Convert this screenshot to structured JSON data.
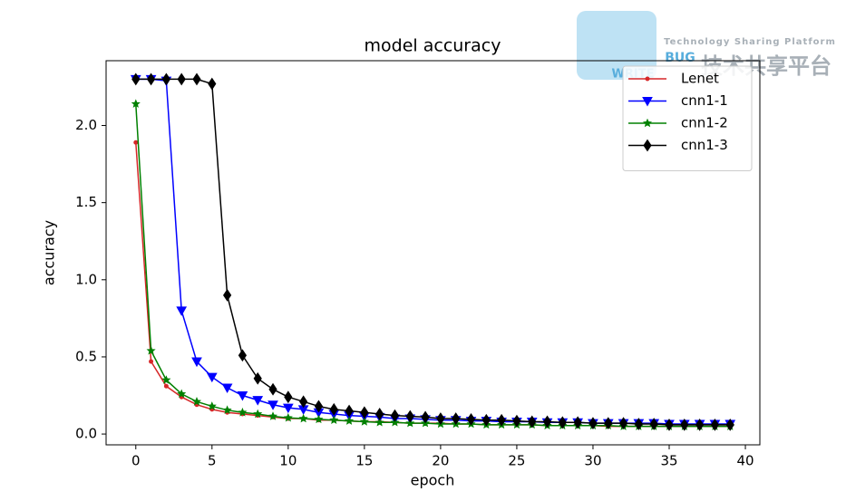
{
  "chart_data": {
    "type": "line",
    "title": "model accuracy",
    "x_label": "epoch",
    "y_label": "accuracy",
    "x": [
      0,
      1,
      2,
      3,
      4,
      5,
      6,
      7,
      8,
      9,
      10,
      11,
      12,
      13,
      14,
      15,
      16,
      17,
      18,
      19,
      20,
      21,
      22,
      23,
      24,
      25,
      26,
      27,
      28,
      29,
      30,
      31,
      32,
      33,
      34,
      35,
      36,
      37,
      38,
      39
    ],
    "series": [
      {
        "name": "Lenet",
        "color": "#d62728",
        "marker": "dot",
        "values": [
          1.89,
          0.47,
          0.31,
          0.24,
          0.19,
          0.16,
          0.14,
          0.13,
          0.12,
          0.11,
          0.1,
          0.1,
          0.09,
          0.09,
          0.085,
          0.08,
          0.08,
          0.075,
          0.07,
          0.07,
          0.07,
          0.065,
          0.065,
          0.06,
          0.06,
          0.06,
          0.06,
          0.055,
          0.055,
          0.055,
          0.055,
          0.05,
          0.05,
          0.05,
          0.05,
          0.05,
          0.05,
          0.05,
          0.05,
          0.05
        ]
      },
      {
        "name": "cnn1-1",
        "color": "#0000ff",
        "marker": "triangle-down",
        "values": [
          2.3,
          2.3,
          2.29,
          0.8,
          0.47,
          0.37,
          0.3,
          0.25,
          0.22,
          0.19,
          0.17,
          0.16,
          0.14,
          0.13,
          0.12,
          0.115,
          0.11,
          0.1,
          0.1,
          0.095,
          0.09,
          0.09,
          0.085,
          0.085,
          0.08,
          0.08,
          0.08,
          0.075,
          0.075,
          0.075,
          0.07,
          0.07,
          0.07,
          0.07,
          0.07,
          0.065,
          0.065,
          0.065,
          0.065,
          0.065
        ]
      },
      {
        "name": "cnn1-2",
        "color": "#008000",
        "marker": "star",
        "values": [
          2.14,
          0.54,
          0.35,
          0.26,
          0.21,
          0.18,
          0.155,
          0.14,
          0.13,
          0.115,
          0.105,
          0.1,
          0.095,
          0.09,
          0.085,
          0.08,
          0.075,
          0.075,
          0.07,
          0.07,
          0.065,
          0.065,
          0.065,
          0.06,
          0.06,
          0.06,
          0.06,
          0.055,
          0.055,
          0.055,
          0.055,
          0.055,
          0.05,
          0.05,
          0.05,
          0.05,
          0.05,
          0.05,
          0.05,
          0.05
        ]
      },
      {
        "name": "cnn1-3",
        "color": "#000000",
        "marker": "diamond",
        "values": [
          2.3,
          2.3,
          2.3,
          2.3,
          2.3,
          2.27,
          0.9,
          0.51,
          0.36,
          0.29,
          0.24,
          0.21,
          0.18,
          0.16,
          0.15,
          0.14,
          0.13,
          0.12,
          0.115,
          0.11,
          0.1,
          0.1,
          0.095,
          0.09,
          0.09,
          0.085,
          0.08,
          0.08,
          0.075,
          0.075,
          0.07,
          0.07,
          0.07,
          0.065,
          0.065,
          0.06,
          0.06,
          0.06,
          0.06,
          0.06
        ]
      }
    ],
    "xlim": [
      -1.95,
      40.95
    ],
    "xticks": [
      0,
      5,
      10,
      15,
      20,
      25,
      30,
      35,
      40
    ],
    "ylim": [
      -0.07,
      2.42
    ],
    "yticks": [
      {
        "value": 0,
        "label": "0.0"
      },
      0.5,
      {
        "value": 1,
        "label": "1.0"
      },
      1.5,
      {
        "value": 2,
        "label": "2.0"
      }
    ],
    "grid": false,
    "legend": "upper right"
  },
  "watermark": {
    "bug": "BUG",
    "write": "WRITE",
    "tagline": "Technology Sharing Platform",
    "chinese": "技术共享平台"
  }
}
